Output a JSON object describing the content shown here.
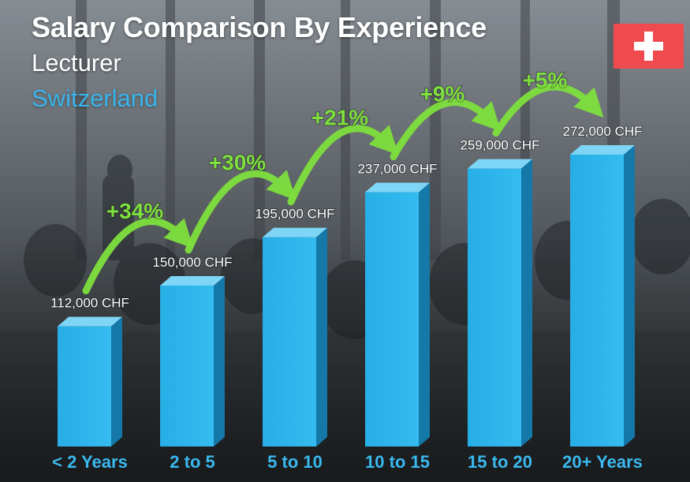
{
  "header": {
    "title": "Salary Comparison By Experience",
    "subtitle": "Lecturer",
    "country": "Switzerland"
  },
  "colors": {
    "bar_front": "#27aee6",
    "bar_top": "#7fd5f6",
    "bar_side": "#1478a8",
    "growth": "#7ee03d",
    "country_text": "#3ab4ea",
    "flag_red": "#ef4b4f"
  },
  "icons": {
    "flag": "switzerland-flag-icon"
  },
  "chart_data": {
    "type": "bar",
    "title": "Salary Comparison By Experience",
    "unit": "CHF",
    "categories": [
      "< 2 Years",
      "2 to 5",
      "5 to 10",
      "10 to 15",
      "15 to 20",
      "20+ Years"
    ],
    "values": [
      112000,
      150000,
      195000,
      237000,
      259000,
      272000
    ],
    "value_labels": [
      "112,000 CHF",
      "150,000 CHF",
      "195,000 CHF",
      "237,000 CHF",
      "259,000 CHF",
      "272,000 CHF"
    ],
    "growth_labels": [
      "+34%",
      "+30%",
      "+21%",
      "+9%",
      "+5%"
    ],
    "ylim": [
      0,
      272000
    ],
    "grid": false,
    "legend": "none"
  }
}
